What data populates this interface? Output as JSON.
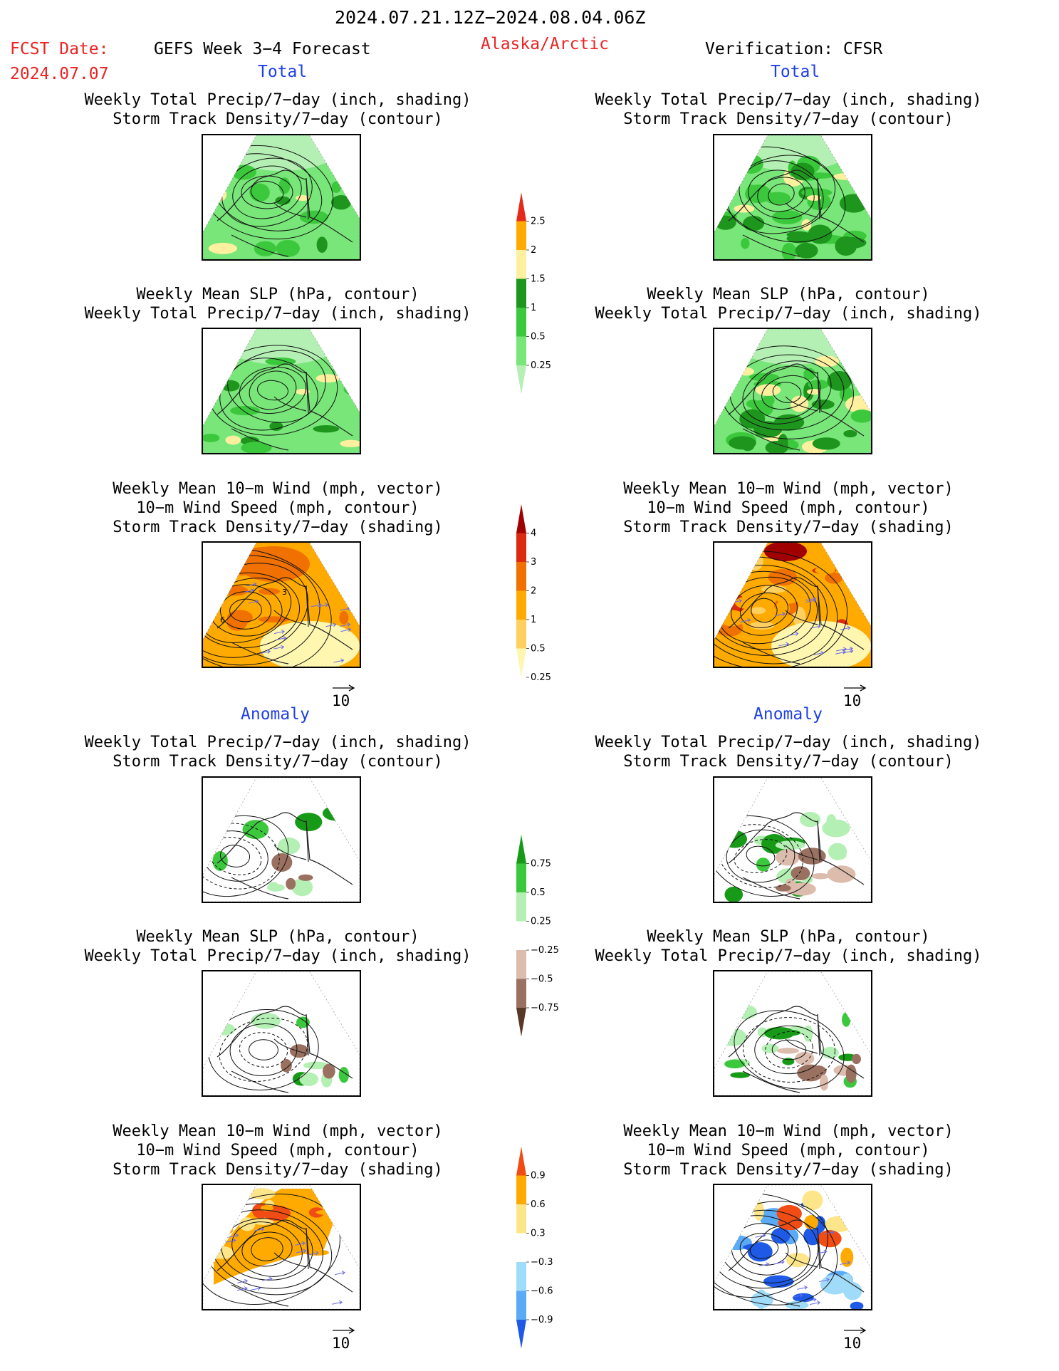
{
  "header": {
    "date_range": "2024.07.21.12Z−2024.08.04.06Z",
    "fcst_date_label": "FCST Date:",
    "fcst_date_value": "2024.07.07",
    "forecast_title": "GEFS Week 3−4 Forecast",
    "region": "Alaska/Arctic",
    "verification": "Verification: CFSR"
  },
  "sections": {
    "total_left": "Total",
    "total_right": "Total",
    "anomaly_left": "Anomaly",
    "anomaly_right": "Anomaly"
  },
  "titles": {
    "precip_storm": [
      "Weekly Total Precip/7−day (inch, shading)",
      "Storm Track Density/7−day (contour)"
    ],
    "slp_precip": [
      "Weekly Mean SLP (hPa, contour)",
      "Weekly Total Precip/7−day (inch, shading)"
    ],
    "wind_storm": [
      "Weekly Mean 10−m Wind (mph, vector)",
      "10−m Wind Speed (mph, contour)",
      "Storm Track Density/7−day (shading)"
    ]
  },
  "vector_ref_label": "10",
  "map_contour_labels": {
    "total_wind_fcst": [
      "3",
      "6"
    ]
  },
  "colors": {
    "precip_total": [
      "#b4f0b4",
      "#78e678",
      "#3cc83c",
      "#1e961e",
      "#fff0a0",
      "#ffaa00",
      "#e52a1a"
    ],
    "storm_total": [
      "#fff7b0",
      "#ffd060",
      "#ffaa00",
      "#f07000",
      "#dc2a10",
      "#a00000"
    ],
    "precip_anom": [
      "#5a3828",
      "#9a7060",
      "#dcbcac",
      "#ffffff",
      "#b4f0b4",
      "#3cc83c",
      "#179a17"
    ],
    "storm_anom": [
      "#1e5ae6",
      "#5aaaf5",
      "#a0dcfa",
      "#ffffff",
      "#fde68a",
      "#ffaa00",
      "#f04c14"
    ]
  },
  "chart_data": [
    {
      "type": "heatmap",
      "name": "precip_total_colorbar",
      "levels": [
        0.25,
        0.5,
        1,
        1.5,
        2,
        2.5
      ],
      "labels": [
        "0.25",
        "0.5",
        "1",
        "1.5",
        "2",
        "2.5"
      ]
    },
    {
      "type": "heatmap",
      "name": "storm_track_total_colorbar",
      "levels": [
        0.25,
        0.5,
        1,
        2,
        3,
        4
      ],
      "labels": [
        "0.25",
        "0.5",
        "1",
        "2",
        "3",
        "4"
      ]
    },
    {
      "type": "heatmap",
      "name": "precip_anomaly_colorbar",
      "levels": [
        -0.75,
        -0.5,
        -0.25,
        0.25,
        0.5,
        0.75
      ],
      "labels": [
        "−0.75",
        "−0.5",
        "−0.25",
        "0.25",
        "0.5",
        "0.75"
      ]
    },
    {
      "type": "heatmap",
      "name": "storm_track_anomaly_colorbar",
      "levels": [
        -0.9,
        -0.6,
        -0.3,
        0.3,
        0.6,
        0.9
      ],
      "labels": [
        "−0.9",
        "−0.6",
        "−0.3",
        "0.3",
        "0.6",
        "0.9"
      ]
    }
  ]
}
